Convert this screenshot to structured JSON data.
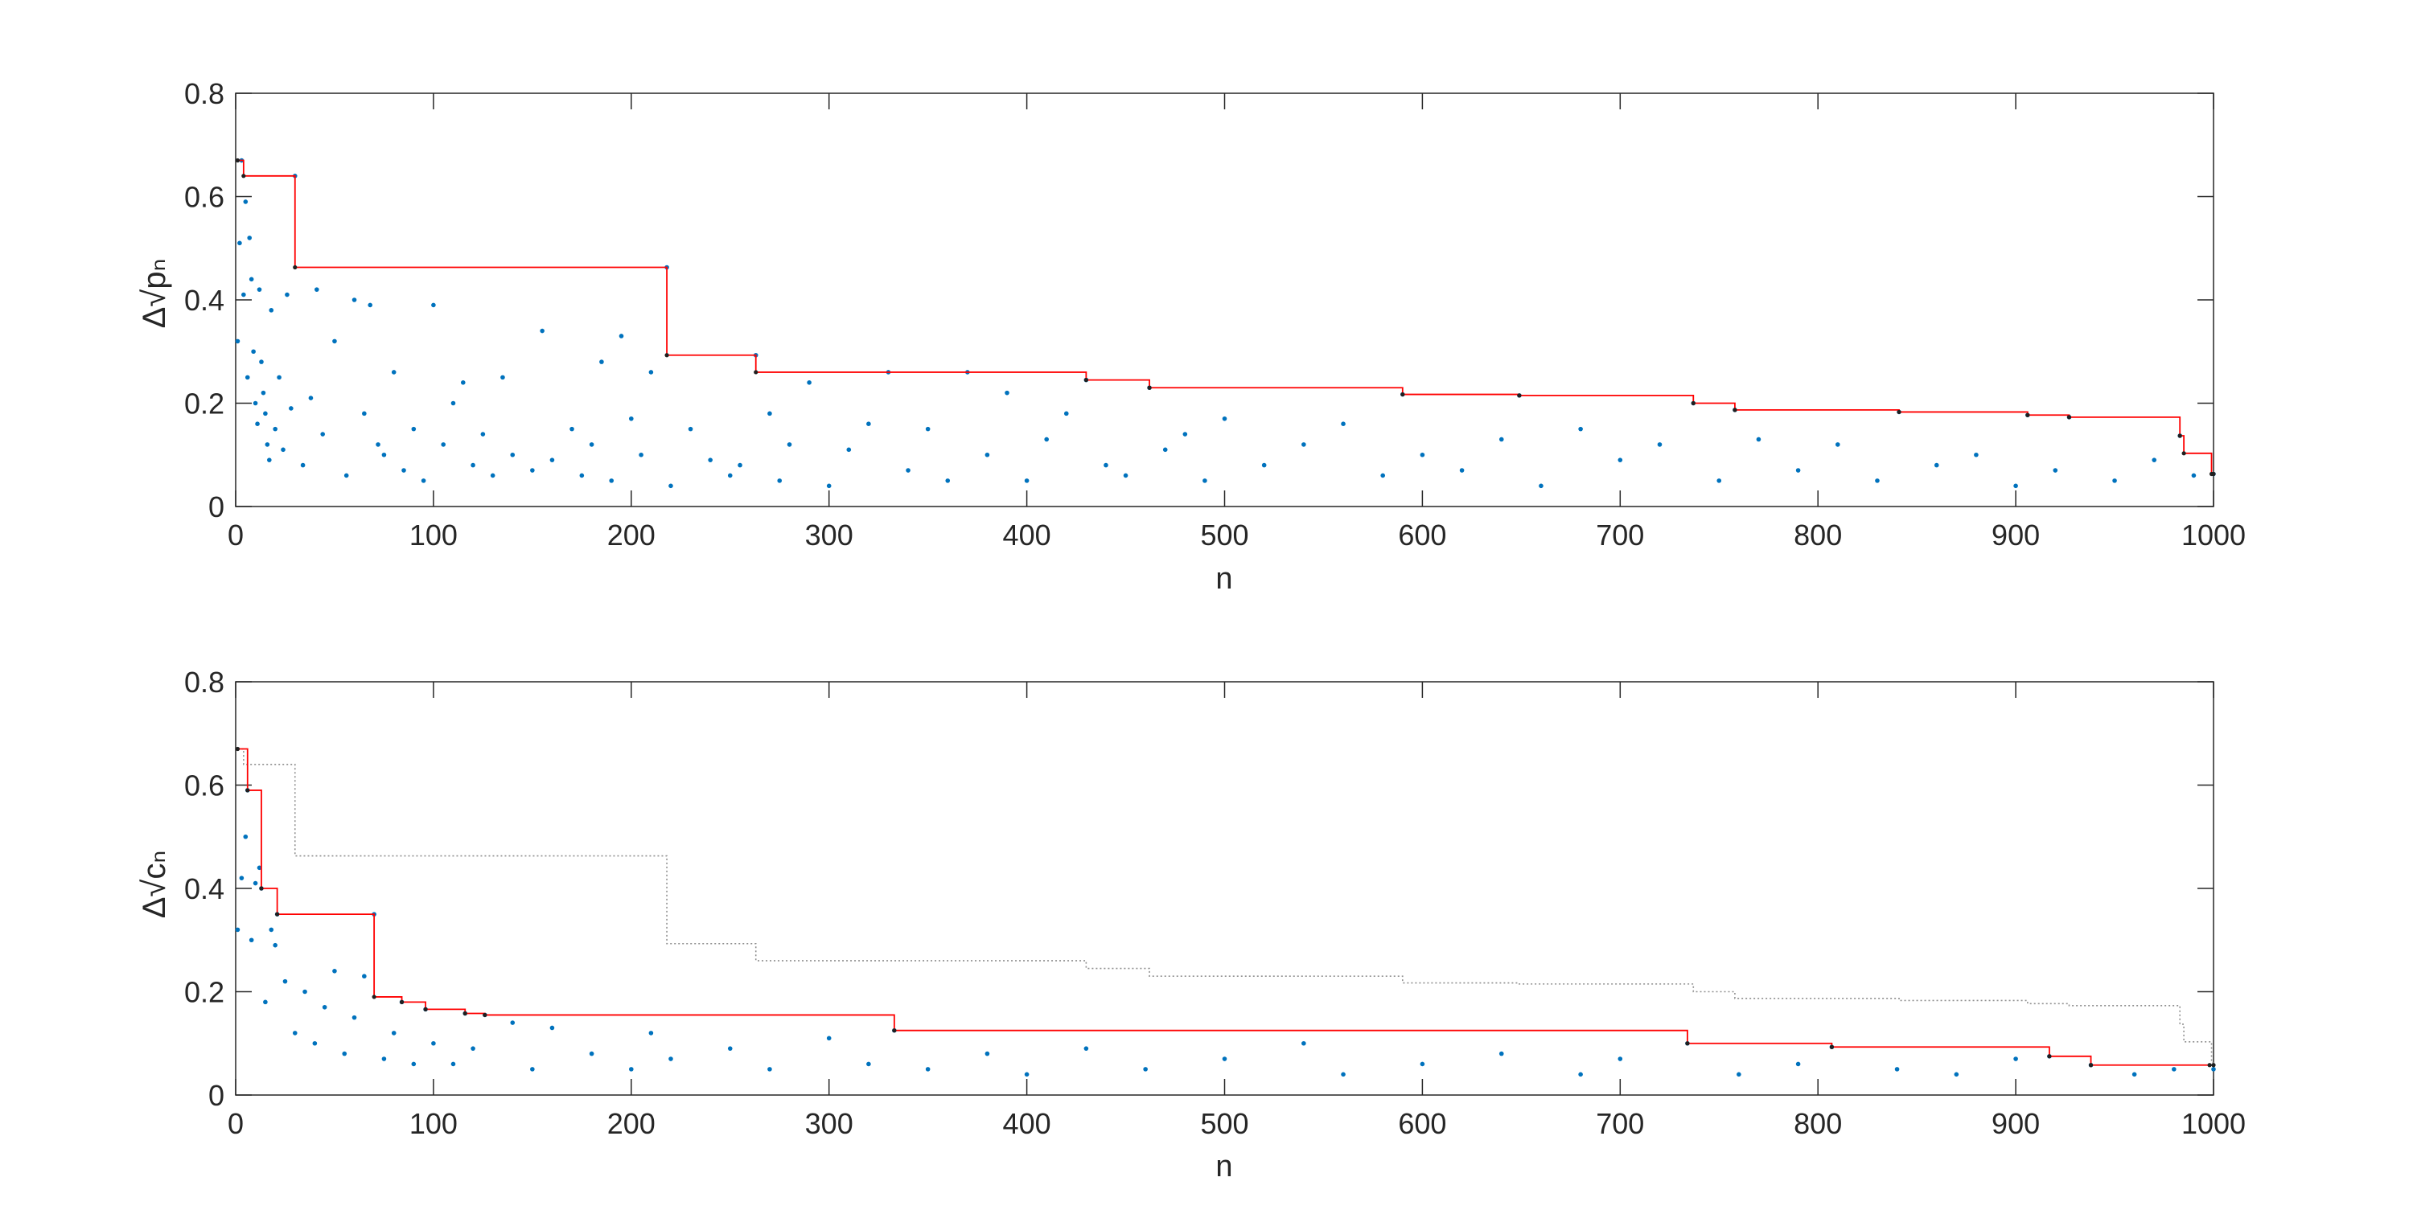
{
  "chart_data": [
    {
      "type": "scatter",
      "xlabel": "n",
      "ylabel": "Δ√pₙ",
      "xlim": [
        0,
        1000
      ],
      "ylim": [
        0,
        0.8
      ],
      "xticks": [
        "0",
        "100",
        "200",
        "300",
        "400",
        "500",
        "600",
        "700",
        "800",
        "900",
        "1000"
      ],
      "yticks": [
        "0",
        "0.2",
        "0.4",
        "0.6",
        "0.8"
      ],
      "grid": false,
      "colors": {
        "points": "#0072BD",
        "envelope": "#FF0000",
        "axes": "#262626"
      },
      "envelope": {
        "style": "step",
        "points": [
          [
            1,
            0.67
          ],
          [
            4,
            0.64
          ],
          [
            30,
            0.463
          ],
          [
            218,
            0.293
          ],
          [
            263,
            0.26
          ],
          [
            430,
            0.245
          ],
          [
            462,
            0.23
          ],
          [
            590,
            0.217
          ],
          [
            649,
            0.215
          ],
          [
            737,
            0.2
          ],
          [
            758,
            0.187
          ],
          [
            841,
            0.183
          ],
          [
            906,
            0.177
          ],
          [
            927,
            0.173
          ],
          [
            983,
            0.137
          ],
          [
            985,
            0.103
          ],
          [
            999,
            0.063
          ],
          [
            1000,
            0.063
          ]
        ]
      },
      "series": [
        {
          "values_x": [
            1,
            2,
            3,
            4,
            5,
            6,
            7,
            8,
            9,
            10,
            11,
            12,
            13,
            14,
            15,
            16,
            17,
            18,
            20,
            22,
            24,
            26,
            28,
            30,
            34,
            38,
            41,
            44,
            50,
            56,
            60,
            65,
            68,
            72,
            75,
            80,
            85,
            90,
            95,
            100,
            105,
            110,
            115,
            120,
            125,
            130,
            135,
            140,
            150,
            155,
            160,
            170,
            175,
            180,
            185,
            190,
            195,
            200,
            205,
            210,
            218,
            220,
            230,
            240,
            250,
            255,
            263,
            270,
            275,
            280,
            290,
            300,
            310,
            320,
            330,
            340,
            350,
            360,
            370,
            380,
            390,
            400,
            410,
            420,
            430,
            440,
            450,
            462,
            470,
            480,
            490,
            500,
            520,
            540,
            560,
            580,
            590,
            600,
            620,
            640,
            649,
            660,
            680,
            700,
            720,
            737,
            750,
            758,
            770,
            790,
            810,
            830,
            841,
            860,
            880,
            900,
            906,
            920,
            927,
            950,
            970,
            983,
            990,
            1000
          ],
          "values_y": [
            0.32,
            0.51,
            0.67,
            0.41,
            0.59,
            0.25,
            0.52,
            0.44,
            0.3,
            0.2,
            0.16,
            0.42,
            0.28,
            0.22,
            0.18,
            0.12,
            0.09,
            0.38,
            0.15,
            0.25,
            0.11,
            0.41,
            0.19,
            0.64,
            0.08,
            0.21,
            0.42,
            0.14,
            0.32,
            0.06,
            0.4,
            0.18,
            0.39,
            0.12,
            0.1,
            0.26,
            0.07,
            0.15,
            0.05,
            0.39,
            0.12,
            0.2,
            0.24,
            0.08,
            0.14,
            0.06,
            0.25,
            0.1,
            0.07,
            0.34,
            0.09,
            0.15,
            0.06,
            0.12,
            0.28,
            0.05,
            0.33,
            0.17,
            0.1,
            0.26,
            0.463,
            0.04,
            0.15,
            0.09,
            0.06,
            0.08,
            0.293,
            0.18,
            0.05,
            0.12,
            0.24,
            0.04,
            0.11,
            0.16,
            0.26,
            0.07,
            0.15,
            0.05,
            0.26,
            0.1,
            0.22,
            0.05,
            0.13,
            0.18,
            0.245,
            0.08,
            0.06,
            0.23,
            0.11,
            0.14,
            0.05,
            0.17,
            0.08,
            0.12,
            0.16,
            0.06,
            0.217,
            0.1,
            0.07,
            0.13,
            0.215,
            0.04,
            0.15,
            0.09,
            0.12,
            0.2,
            0.05,
            0.187,
            0.13,
            0.07,
            0.12,
            0.05,
            0.183,
            0.08,
            0.1,
            0.04,
            0.177,
            0.07,
            0.173,
            0.05,
            0.09,
            0.137,
            0.06,
            0.063
          ]
        }
      ]
    },
    {
      "type": "scatter",
      "xlabel": "n",
      "ylabel": "Δ√cₙ",
      "xlim": [
        0,
        1000
      ],
      "ylim": [
        0,
        0.8
      ],
      "xticks": [
        "0",
        "100",
        "200",
        "300",
        "400",
        "500",
        "600",
        "700",
        "800",
        "900",
        "1000"
      ],
      "yticks": [
        "0",
        "0.2",
        "0.4",
        "0.6",
        "0.8"
      ],
      "grid": false,
      "colors": {
        "points": "#0072BD",
        "envelope": "#FF0000",
        "reference": "#909090",
        "axes": "#262626"
      },
      "envelope": {
        "style": "step",
        "points": [
          [
            1,
            0.67
          ],
          [
            6,
            0.59
          ],
          [
            13,
            0.4
          ],
          [
            21,
            0.35
          ],
          [
            70,
            0.19
          ],
          [
            84,
            0.18
          ],
          [
            96,
            0.166
          ],
          [
            116,
            0.158
          ],
          [
            126,
            0.155
          ],
          [
            333,
            0.125
          ],
          [
            734,
            0.1
          ],
          [
            807,
            0.093
          ],
          [
            917,
            0.075
          ],
          [
            938,
            0.058
          ],
          [
            998,
            0.058
          ],
          [
            1000,
            0.058
          ]
        ]
      },
      "reference": {
        "style": "step",
        "points": [
          [
            1,
            0.67
          ],
          [
            4,
            0.64
          ],
          [
            30,
            0.463
          ],
          [
            218,
            0.293
          ],
          [
            263,
            0.26
          ],
          [
            430,
            0.245
          ],
          [
            462,
            0.23
          ],
          [
            590,
            0.217
          ],
          [
            649,
            0.215
          ],
          [
            737,
            0.2
          ],
          [
            758,
            0.187
          ],
          [
            841,
            0.183
          ],
          [
            906,
            0.177
          ],
          [
            927,
            0.173
          ],
          [
            983,
            0.137
          ],
          [
            985,
            0.103
          ],
          [
            999,
            0.063
          ],
          [
            1000,
            0.063
          ]
        ]
      },
      "series": [
        {
          "values_x": [
            1,
            3,
            5,
            6,
            8,
            10,
            12,
            13,
            15,
            18,
            20,
            21,
            25,
            30,
            35,
            40,
            45,
            50,
            55,
            60,
            65,
            70,
            75,
            80,
            84,
            90,
            96,
            100,
            110,
            116,
            120,
            126,
            140,
            150,
            160,
            180,
            200,
            210,
            220,
            250,
            270,
            300,
            320,
            333,
            350,
            380,
            400,
            430,
            460,
            500,
            540,
            560,
            600,
            640,
            680,
            700,
            734,
            760,
            790,
            807,
            840,
            870,
            900,
            917,
            938,
            960,
            980,
            1000
          ],
          "values_y": [
            0.32,
            0.42,
            0.5,
            0.59,
            0.3,
            0.41,
            0.44,
            0.4,
            0.18,
            0.32,
            0.29,
            0.35,
            0.22,
            0.12,
            0.2,
            0.1,
            0.17,
            0.24,
            0.08,
            0.15,
            0.23,
            0.35,
            0.07,
            0.12,
            0.18,
            0.06,
            0.166,
            0.1,
            0.06,
            0.158,
            0.09,
            0.155,
            0.14,
            0.05,
            0.13,
            0.08,
            0.05,
            0.12,
            0.07,
            0.09,
            0.05,
            0.11,
            0.06,
            0.125,
            0.05,
            0.08,
            0.04,
            0.09,
            0.05,
            0.07,
            0.1,
            0.04,
            0.06,
            0.08,
            0.04,
            0.07,
            0.1,
            0.04,
            0.06,
            0.093,
            0.05,
            0.04,
            0.07,
            0.075,
            0.058,
            0.04,
            0.05,
            0.05
          ]
        }
      ]
    }
  ]
}
